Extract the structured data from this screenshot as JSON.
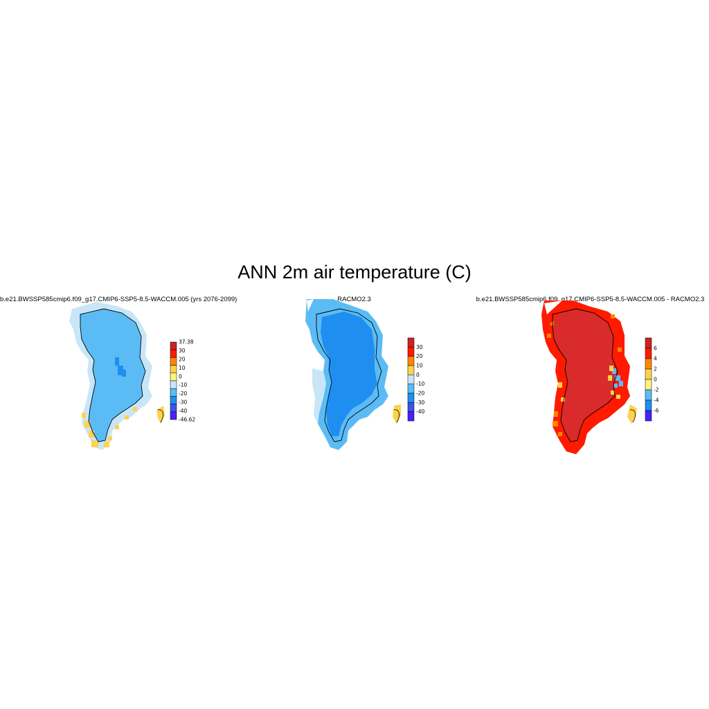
{
  "title": "ANN 2m air temperature (C)",
  "colors": {
    "land": "#ffffff",
    "coast": "#000000"
  },
  "panels": [
    {
      "title": "b.e21.BWSSP585cmip6.f09_g17.CMIP6-SSP5-8.5-WACCM.005 (yrs 2076-2099)",
      "colorbar_labels": [
        "37.38",
        "30",
        "20",
        "10",
        "0",
        "-10",
        "-20",
        "-30",
        "-40",
        "-46.62"
      ],
      "colorbar_colors": [
        "#cc2222",
        "#ff1a00",
        "#ff8800",
        "#ffd24d",
        "#fff280",
        "#c8e6f8",
        "#5bbcf5",
        "#1e8ff0",
        "#3a55e8",
        "#4a1fff"
      ],
      "fill_main": "#5bbcf5",
      "fill_edge": "#c8e6f8",
      "fill_core": "#1e8ff0",
      "fill_coast": "#ffd24d"
    },
    {
      "title": "RACMO2.3",
      "colorbar_labels": [
        "30",
        "20",
        "10",
        "0",
        "-10",
        "-20",
        "-30",
        "-40"
      ],
      "colorbar_colors": [
        "#cc2222",
        "#ff1a00",
        "#ff8800",
        "#ffd24d",
        "#c8e6f8",
        "#5bbcf5",
        "#1e8ff0",
        "#3a55e8",
        "#4a1fff"
      ],
      "fill_main": "#1e8ff0",
      "fill_edge": "#5bbcf5",
      "fill_core": "#1e8ff0",
      "fill_coast": "#ffd24d"
    },
    {
      "title": "b.e21.BWSSP585cmip6.f09_g17.CMIP6-SSP5-8.5-WACCM.005 - RACMO2.3",
      "colorbar_labels": [
        "6",
        "4",
        "2",
        "0",
        "-2",
        "-4",
        "-6"
      ],
      "colorbar_colors": [
        "#cc2222",
        "#ff1a00",
        "#ff8800",
        "#ffd24d",
        "#fff280",
        "#5bbcf5",
        "#1e8ff0",
        "#4a1fff"
      ],
      "fill_main": "#d92b2b",
      "fill_edge": "#ff1a00",
      "fill_core": "#d92b2b",
      "fill_coast": "#ff8800"
    }
  ]
}
